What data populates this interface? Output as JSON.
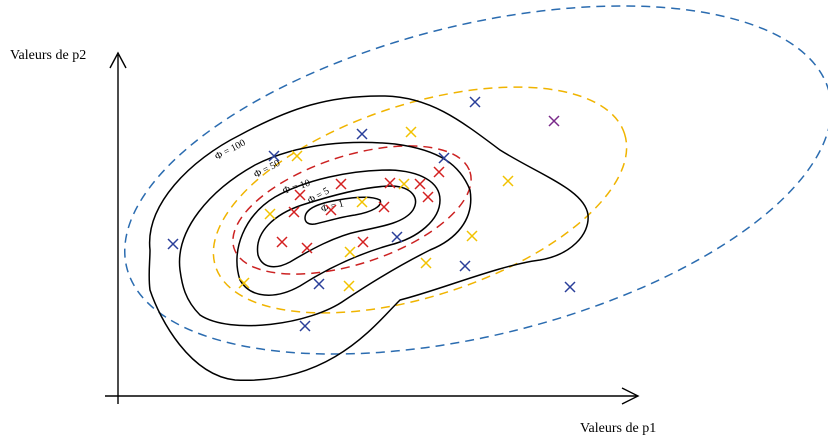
{
  "axes": {
    "x_label": "Valeurs de p1",
    "y_label": "Valeurs de p2"
  },
  "contours": [
    {
      "label": "Φ = 100"
    },
    {
      "label": "Φ = 50"
    },
    {
      "label": "Φ = 10"
    },
    {
      "label": "Φ = 5"
    },
    {
      "label": "Φ = 1"
    }
  ],
  "ellipse_colors": {
    "blue": "#2b6cb0",
    "yellow": "#f0b400",
    "red": "#cc2222"
  },
  "marker_colors": {
    "blue": "#2a3f9a",
    "yellow": "#f2c200",
    "red": "#d42020",
    "purple": "#7a2a8a"
  },
  "marker_icon": "cross-marker-icon"
}
